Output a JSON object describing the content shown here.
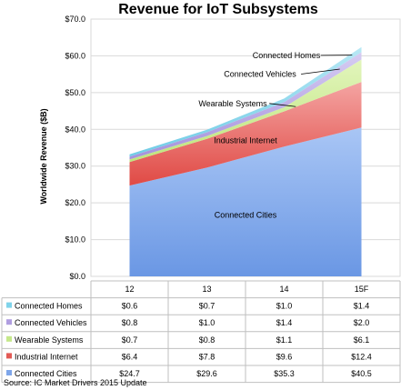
{
  "chart_data": {
    "type": "area",
    "stacked": true,
    "title": "Revenue for IoT Subsystems",
    "ylabel": "Worldwide Revenue ($B)",
    "xlabel": "",
    "categories": [
      "12",
      "13",
      "14",
      "15F"
    ],
    "ylim": [
      0,
      70
    ],
    "yticks": [
      "$0.0",
      "$10.0",
      "$20.0",
      "$30.0",
      "$40.0",
      "$50.0",
      "$60.0",
      "$70.0"
    ],
    "grid": true,
    "series": [
      {
        "name": "Connected Cities",
        "values": [
          24.7,
          29.6,
          35.3,
          40.5
        ],
        "labels": [
          "$24.7",
          "$29.6",
          "$35.3",
          "$40.5"
        ],
        "color": "#7ea6ea"
      },
      {
        "name": "Industrial Internet",
        "values": [
          6.4,
          7.8,
          9.6,
          12.4
        ],
        "labels": [
          "$6.4",
          "$7.8",
          "$9.6",
          "$12.4"
        ],
        "color": "#e25a55"
      },
      {
        "name": "Wearable Systems",
        "values": [
          0.7,
          0.8,
          1.1,
          6.1
        ],
        "labels": [
          "$0.7",
          "$0.8",
          "$1.1",
          "$6.1"
        ],
        "color": "#c5e88a"
      },
      {
        "name": "Connected Vehicles",
        "values": [
          0.8,
          1.0,
          1.4,
          2.0
        ],
        "labels": [
          "$0.8",
          "$1.0",
          "$1.4",
          "$2.0"
        ],
        "color": "#b09ee0"
      },
      {
        "name": "Connected Homes",
        "values": [
          0.6,
          0.7,
          1.0,
          1.4
        ],
        "labels": [
          "$0.6",
          "$0.7",
          "$1.0",
          "$1.4"
        ],
        "color": "#7fd3ea"
      }
    ],
    "table_order": [
      "Connected Homes",
      "Connected Vehicles",
      "Wearable Systems",
      "Industrial Internet",
      "Connected Cities"
    ],
    "source": "Source:  IC Market Drivers 2015 Update"
  }
}
